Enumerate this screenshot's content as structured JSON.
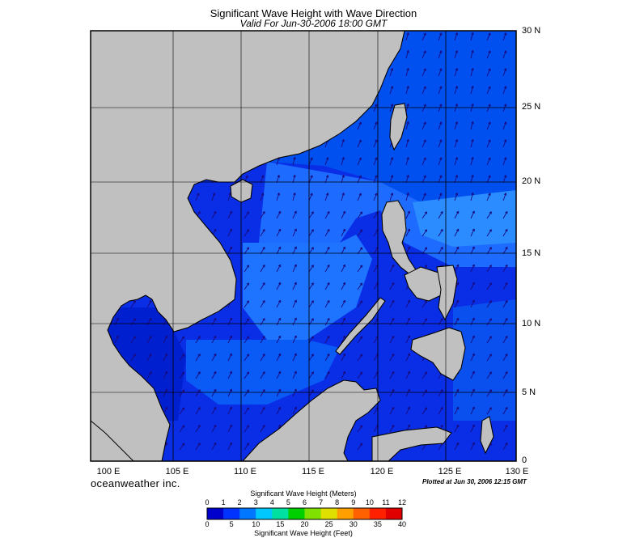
{
  "title": "Significant Wave Height with Wave Direction",
  "subtitle": "Valid For Jun-30-2006 18:00 GMT",
  "credit": "oceanweather inc.",
  "plotted": "Plotted at Jun 30, 2006 12:15 GMT",
  "lon_labels": [
    "100 E",
    "105 E",
    "110 E",
    "115 E",
    "120 E",
    "125 E",
    "130 E"
  ],
  "lat_labels": [
    "30 N",
    "25 N",
    "20 N",
    "15 N",
    "10 N",
    "5 N",
    "0"
  ],
  "colorbar": {
    "title_meters": "Significant Wave Height (Meters)",
    "title_feet": "Significant Wave Height (Feet)",
    "meters_ticks": [
      "0",
      "1",
      "2",
      "3",
      "4",
      "5",
      "6",
      "7",
      "8",
      "9",
      "10",
      "11",
      "12"
    ],
    "feet_ticks": [
      "0",
      "5",
      "10",
      "15",
      "20",
      "25",
      "30",
      "35",
      "40"
    ],
    "colors": [
      "#0000cc",
      "#0033ff",
      "#0077ff",
      "#00c8ff",
      "#00e0a0",
      "#00d000",
      "#80e000",
      "#e0e000",
      "#ffa000",
      "#ff6000",
      "#ff2000",
      "#e00000"
    ]
  },
  "colors": {
    "land": "#c0c0c0",
    "coast": "#000000",
    "sea_low": "#0019d9",
    "sea_mid": "#0050f0",
    "sea_high": "#1e82ff",
    "arrow": "#1a0a7a"
  }
}
